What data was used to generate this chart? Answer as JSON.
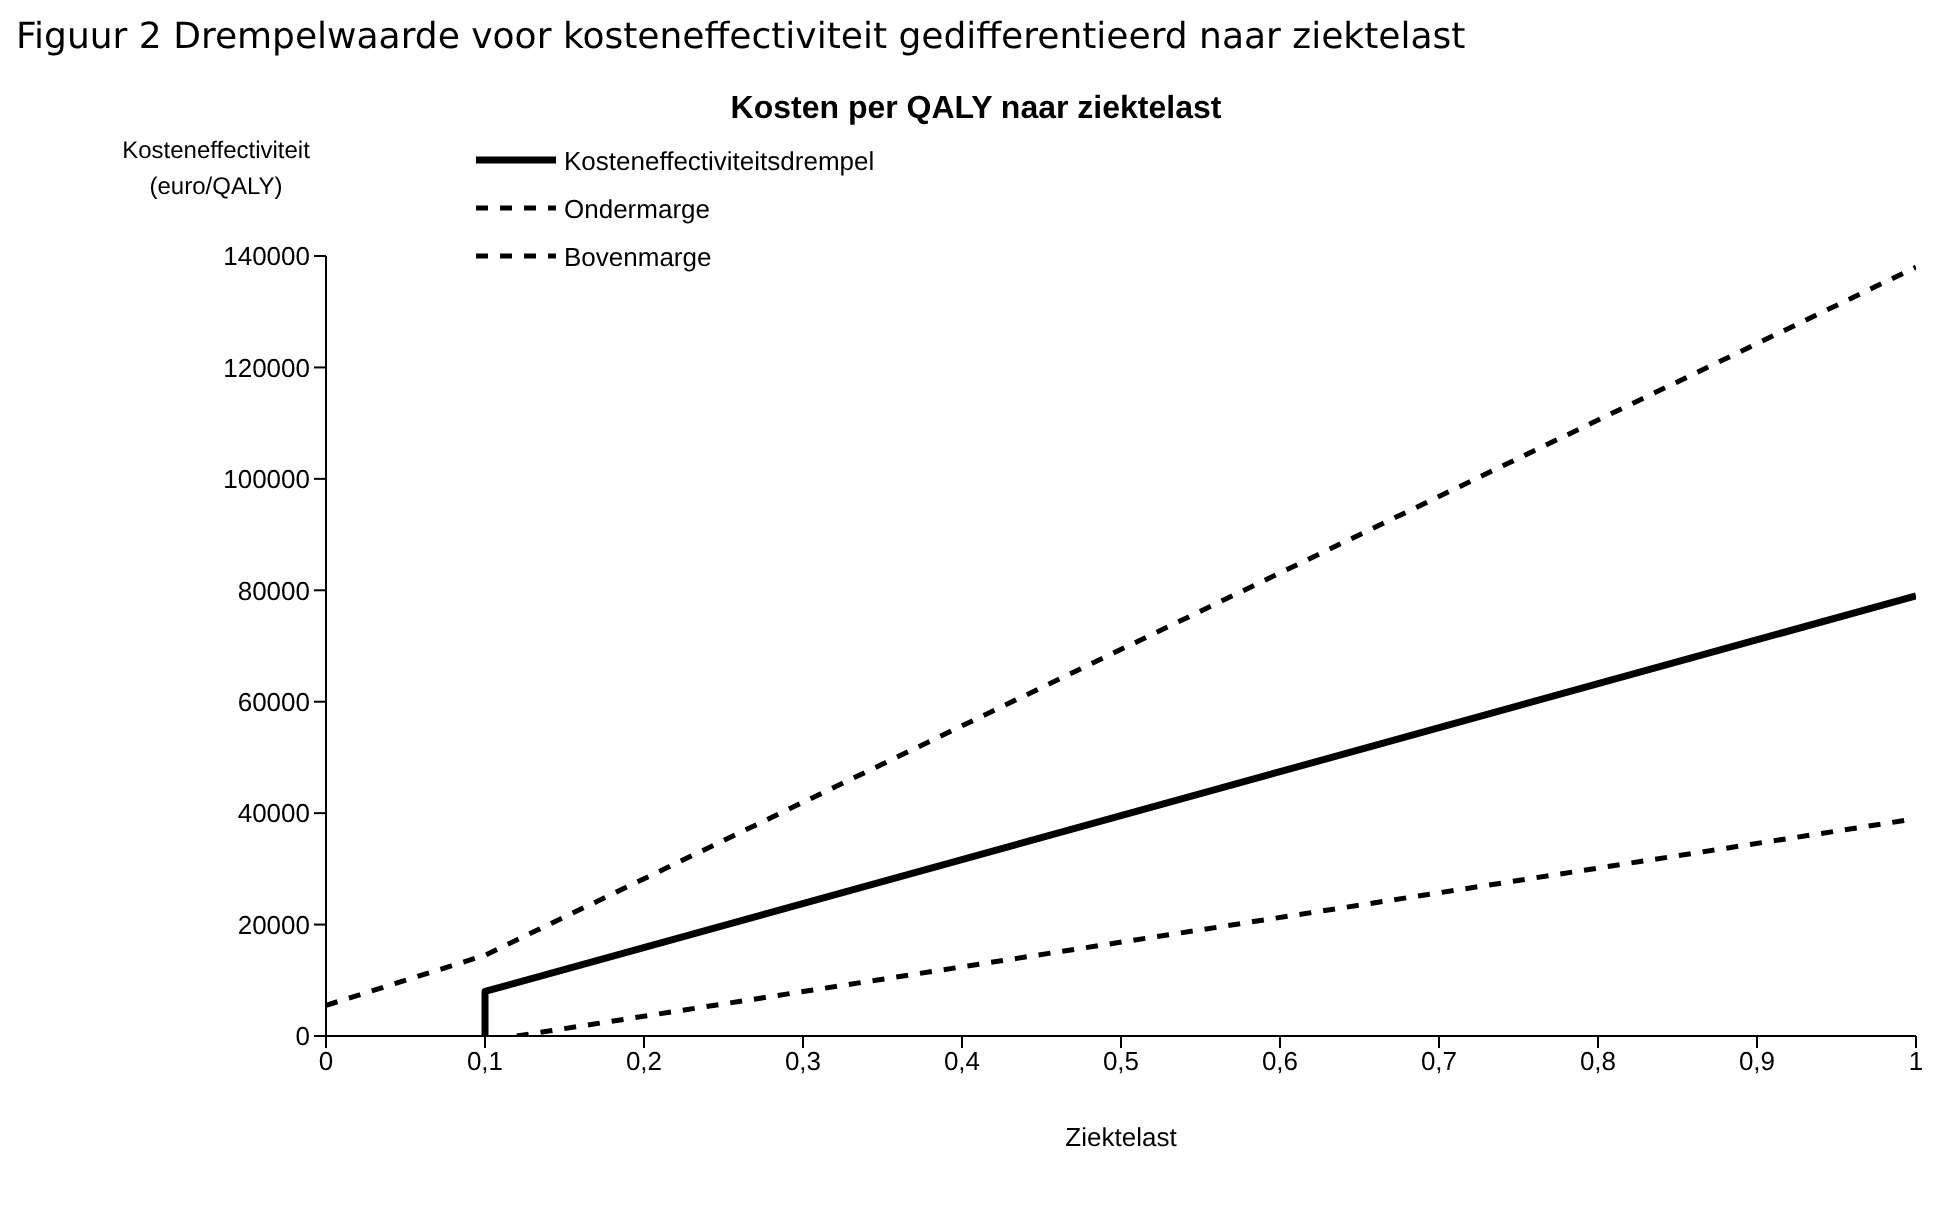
{
  "chart_data": {
    "type": "line",
    "title": "Figuur 2 Drempelwaarde voor kosteneffectiviteit gedifferentieerd naar ziektelast",
    "subtitle": "Kosten per QALY naar ziektelast",
    "xlabel": "Ziektelast",
    "ylabel": "Kosteneffectiviteit\n(euro/QALY)",
    "series": [
      {
        "name": "Kosteneffectiviteitsdrempel",
        "color": "#000000",
        "line_style": "solid",
        "x": [
          0.1,
          0.1,
          1
        ],
        "values": [
          0,
          8000,
          79000
        ]
      },
      {
        "name": "Ondermarge",
        "color": "#000000",
        "line_style": "dashed",
        "x": [
          0.12,
          1
        ],
        "values": [
          0,
          39000
        ]
      },
      {
        "name": "Bovenmarge",
        "color": "#000000",
        "line_style": "dashed",
        "x": [
          0,
          0.1,
          1
        ],
        "values": [
          5500,
          14500,
          138000
        ]
      }
    ],
    "xlim": [
      0,
      1
    ],
    "xticks": [
      0,
      {
        "value": 0.1,
        "label": "0,1"
      },
      {
        "value": 0.2,
        "label": "0,2"
      },
      {
        "value": 0.3,
        "label": "0,3"
      },
      {
        "value": 0.4,
        "label": "0,4"
      },
      {
        "value": 0.5,
        "label": "0,5"
      },
      {
        "value": 0.6,
        "label": "0,6"
      },
      {
        "value": 0.7,
        "label": "0,7"
      },
      {
        "value": 0.8,
        "label": "0,8"
      },
      {
        "value": 0.9,
        "label": "0,9"
      },
      1
    ],
    "ylim": [
      0,
      140000
    ],
    "yticks": [
      0,
      20000,
      40000,
      60000,
      80000,
      100000,
      120000,
      140000
    ],
    "grid": false,
    "legend": "top left",
    "marker": "none"
  }
}
